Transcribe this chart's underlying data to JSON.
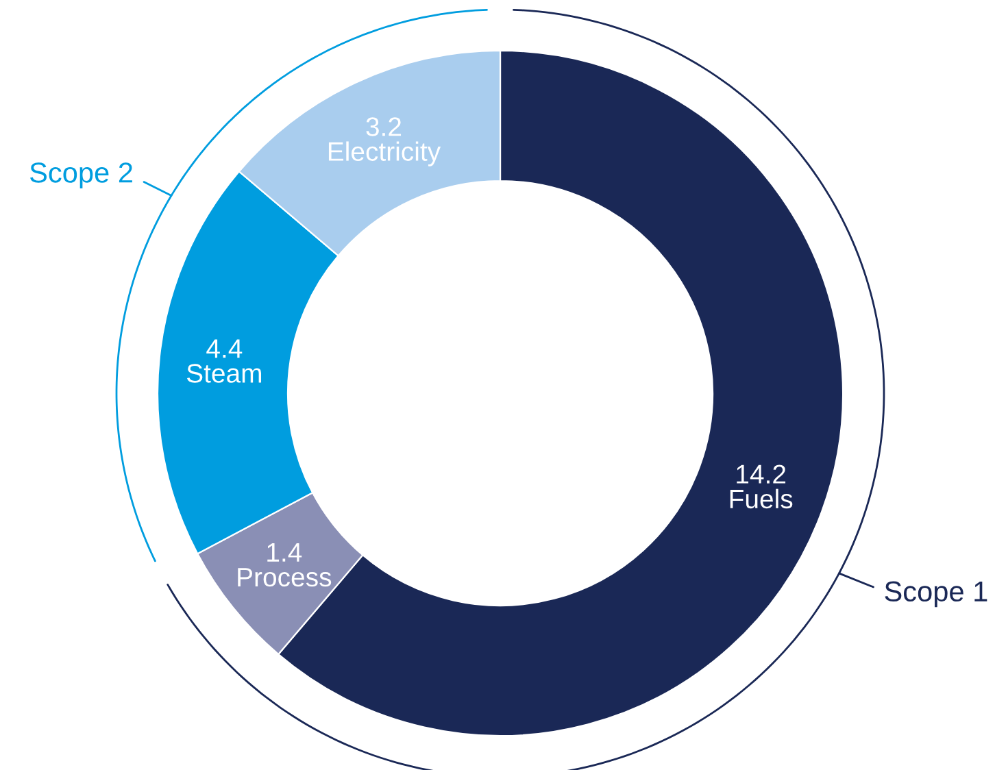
{
  "chart_data": {
    "type": "donut",
    "categories": [
      "Fuels",
      "Process",
      "Steam",
      "Electricity"
    ],
    "values": [
      14.2,
      1.4,
      4.4,
      3.2
    ],
    "colors": [
      "#1a2856",
      "#8a8fb5",
      "#009ddf",
      "#a9cdee"
    ],
    "data_labels": true,
    "annotations": [
      "Scope 1",
      "Scope 2"
    ]
  }
}
